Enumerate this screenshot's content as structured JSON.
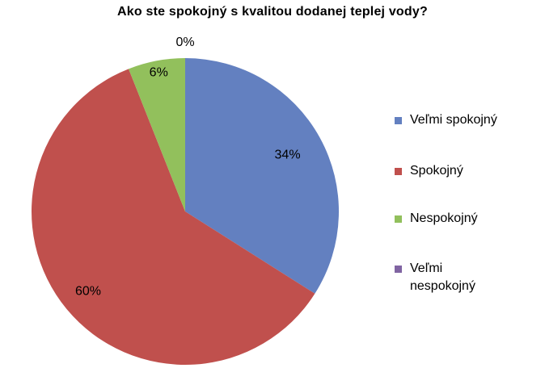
{
  "chart_data": {
    "type": "pie",
    "title": "Ako ste spokojný  s kvalitou dodanej teplej vody?",
    "categories": [
      "Veľmi spokojný",
      "Spokojný",
      "Nespokojný",
      "Veľmi nespokojný"
    ],
    "values": [
      34,
      60,
      6,
      0
    ],
    "data_labels": [
      "34%",
      "60%",
      "6%",
      "0%"
    ],
    "colors": [
      "#6380C0",
      "#C0504D",
      "#92C05C",
      "#8064A2"
    ],
    "legend_position": "right",
    "start_angle": "top",
    "direction": "clockwise"
  },
  "legend": {
    "items": [
      {
        "label": "Veľmi spokojný",
        "color": "#6380C0"
      },
      {
        "label": "Spokojný",
        "color": "#C0504D"
      },
      {
        "label": "Nespokojný",
        "color": "#92C05C"
      },
      {
        "label": "Veľmi\nnespokojný",
        "color": "#8064A2"
      }
    ]
  }
}
